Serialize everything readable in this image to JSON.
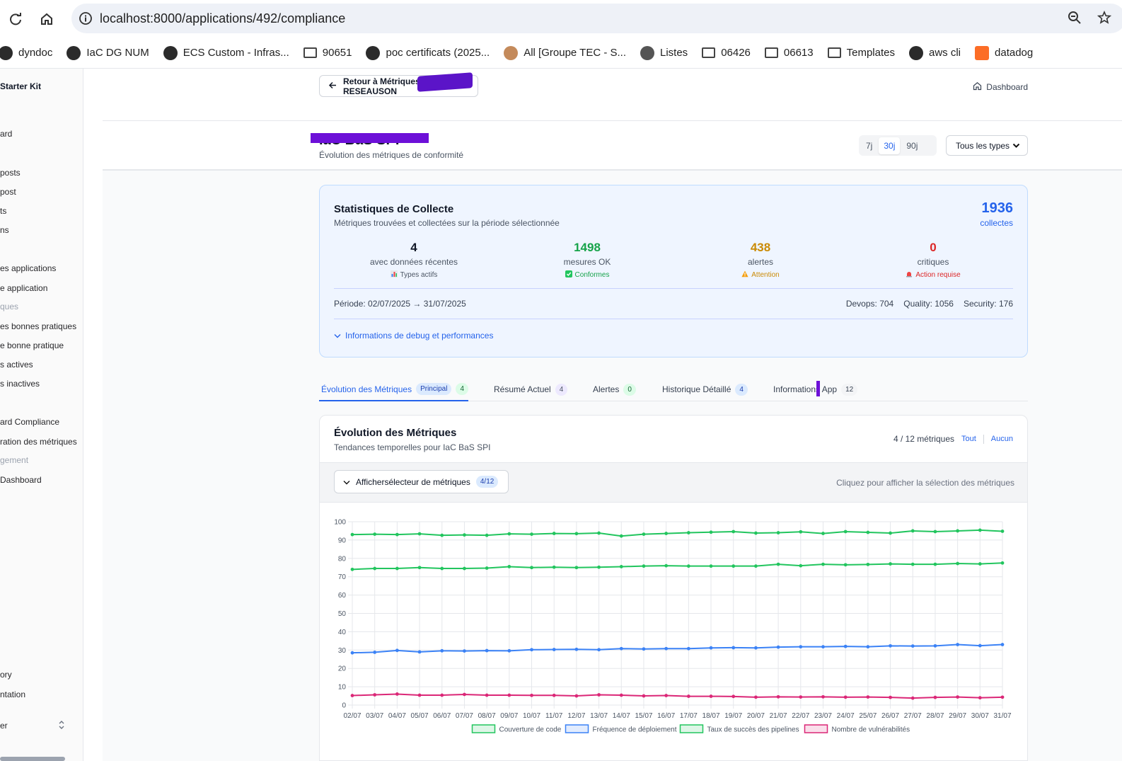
{
  "browser": {
    "url": "localhost:8000/applications/492/compliance",
    "bookmarks": [
      {
        "label": "dyndoc",
        "icon": "app-icon"
      },
      {
        "label": "IaC DG NUM",
        "icon": "app-icon"
      },
      {
        "label": "ECS Custom - Infras...",
        "icon": "app-icon"
      },
      {
        "label": "90651",
        "icon": "folder-icon"
      },
      {
        "label": "poc certificats (2025...",
        "icon": "app-icon"
      },
      {
        "label": "All [Groupe TEC - S...",
        "icon": "user-icon"
      },
      {
        "label": "Listes",
        "icon": "globe-icon"
      },
      {
        "label": "06426",
        "icon": "folder-icon"
      },
      {
        "label": "06613",
        "icon": "folder-icon"
      },
      {
        "label": "Templates",
        "icon": "folder-icon"
      },
      {
        "label": "aws cli",
        "icon": "app-icon"
      },
      {
        "label": "datadog",
        "icon": "gitlab-icon"
      }
    ]
  },
  "sidebar": {
    "items": [
      {
        "label": "Starter Kit"
      },
      {
        "label": "ard"
      },
      {
        "label": "posts"
      },
      {
        "label": " post"
      },
      {
        "label": "ts"
      },
      {
        "label": "ns"
      },
      {
        "label": "es applications"
      },
      {
        "label": "e application"
      },
      {
        "label": "ques"
      },
      {
        "label": "es bonnes pratiques"
      },
      {
        "label": "e bonne pratique"
      },
      {
        "label": "s actives"
      },
      {
        "label": "s inactives"
      },
      {
        "label": "ard Compliance"
      },
      {
        "label": "ration des métriques"
      },
      {
        "label": "gement"
      },
      {
        "label": "Dashboard"
      },
      {
        "label": "ory"
      },
      {
        "label": "ntation"
      },
      {
        "label": "er"
      }
    ]
  },
  "topbar": {
    "back_label": "Retour à Métriques - RESEAUSON",
    "dashboard_label": "Dashboard"
  },
  "header": {
    "title": "IaC BaS SPI",
    "subtitle": "Évolution des métriques de conformité",
    "periods": [
      "7j",
      "30j",
      "90j"
    ],
    "active_period": "30j",
    "type_select": "Tous les types"
  },
  "stats": {
    "title": "Statistiques de Collecte",
    "description": "Métriques trouvées et collectées sur la période sélectionnée",
    "total_value": "1936",
    "total_label": "collectes",
    "kpis": [
      {
        "value": "4",
        "label": "avec données récentes",
        "tag": "Types actifs",
        "color": "#111827",
        "tag_color": "#4b5563"
      },
      {
        "value": "1498",
        "label": "mesures OK",
        "tag": "Conformes",
        "color": "#16a34a",
        "tag_color": "#16a34a"
      },
      {
        "value": "438",
        "label": "alertes",
        "tag": "Attention",
        "color": "#ca8a04",
        "tag_color": "#ca8a04"
      },
      {
        "value": "0",
        "label": "critiques",
        "tag": "Action requise",
        "color": "#dc2626",
        "tag_color": "#dc2626"
      }
    ],
    "period": "Période: 02/07/2025 → 31/07/2025",
    "devops": "Devops: 704",
    "quality": "Quality: 1056",
    "security": "Security: 176",
    "debug_link": "Informations de debug et performances"
  },
  "tabs": [
    {
      "label": "Évolution des Métriques",
      "extra": "Principal",
      "count": "4"
    },
    {
      "label": "Résumé Actuel",
      "count": "4"
    },
    {
      "label": "Alertes",
      "count": "0"
    },
    {
      "label": "Historique Détaillé",
      "count": "4"
    },
    {
      "label": "Informations App",
      "count": "12"
    }
  ],
  "metrics": {
    "title": "Évolution des Métriques",
    "subtitle": "Tendances temporelles pour IaC BaS SPI",
    "count_text": "4 / 12 métriques",
    "all_label": "Tout",
    "none_label": "Aucun",
    "selector_label": "Affichersélecteur de métriques",
    "selector_badge": "4/12",
    "selector_hint": "Cliquez pour afficher la sélection des métriques"
  },
  "chart_data": {
    "type": "line",
    "title": "",
    "xlabel": "",
    "ylabel": "",
    "ylim": [
      0,
      100
    ],
    "yticks": [
      0,
      10,
      20,
      30,
      40,
      50,
      60,
      70,
      80,
      90,
      100
    ],
    "x": [
      "02/07",
      "03/07",
      "04/07",
      "05/07",
      "06/07",
      "07/07",
      "08/07",
      "09/07",
      "10/07",
      "11/07",
      "12/07",
      "13/07",
      "14/07",
      "15/07",
      "16/07",
      "17/07",
      "18/07",
      "19/07",
      "20/07",
      "21/07",
      "22/07",
      "23/07",
      "24/07",
      "25/07",
      "26/07",
      "27/07",
      "28/07",
      "29/07",
      "30/07",
      "31/07"
    ],
    "series": [
      {
        "name": "Couverture de code",
        "color": "#22c55e",
        "values": [
          74,
          74.5,
          74.5,
          75,
          74.5,
          74.5,
          74.7,
          75.5,
          75,
          75.2,
          75,
          75.2,
          75.5,
          75.8,
          76,
          75.8,
          75.8,
          75.8,
          75.8,
          76.8,
          76,
          76.8,
          76.5,
          76.7,
          77,
          76.8,
          76.8,
          77.2,
          77,
          77.5
        ]
      },
      {
        "name": "Fréquence de déploiement",
        "color": "#3b82f6",
        "values": [
          28.5,
          28.8,
          29.8,
          29,
          29.6,
          29.5,
          29.7,
          29.6,
          30.2,
          30.3,
          30.4,
          30.2,
          30.8,
          30.6,
          30.8,
          30.8,
          31.2,
          31.3,
          31.2,
          31.6,
          31.8,
          31.8,
          32,
          31.8,
          32.3,
          32.2,
          32.3,
          33,
          32.4,
          33
        ]
      },
      {
        "name": "Taux de succès des pipelines",
        "color": "#22c55e",
        "values": [
          93,
          93.2,
          93,
          93.4,
          92.6,
          92.8,
          92.6,
          93.4,
          93.2,
          93.6,
          93.5,
          93.8,
          92.2,
          93.2,
          93.6,
          94,
          94.3,
          94.6,
          93.8,
          94,
          94.5,
          93.6,
          94.6,
          94.2,
          93.8,
          95,
          94.6,
          95,
          95.4,
          94.8
        ]
      },
      {
        "name": "Nombre de vulnérabilités",
        "color": "#db2777",
        "values": [
          5.2,
          5.6,
          6,
          5.4,
          5.4,
          5.8,
          5.4,
          5.4,
          5.3,
          5.3,
          5,
          5.6,
          5.4,
          5,
          5.2,
          4.8,
          4.8,
          4.7,
          4.3,
          4.5,
          4.4,
          4.5,
          4.3,
          4.4,
          4.2,
          3.8,
          4.2,
          4.4,
          4,
          4.3
        ]
      }
    ]
  }
}
